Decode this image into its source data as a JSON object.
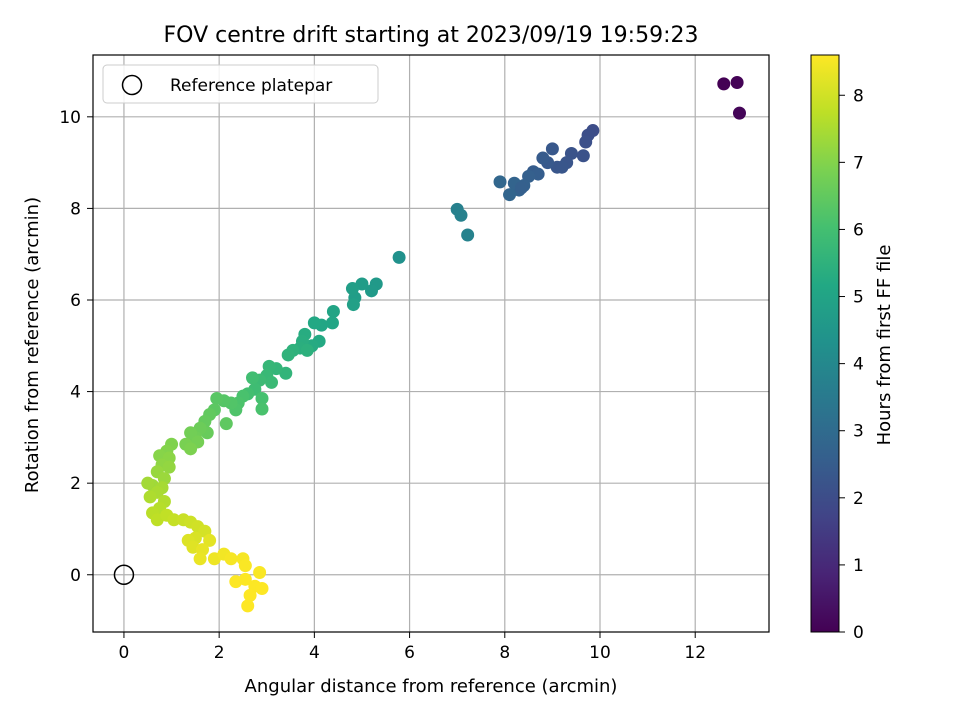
{
  "chart_data": {
    "type": "scatter",
    "title": "FOV centre drift starting at 2023/09/19 19:59:23",
    "xlabel": "Angular distance from reference (arcmin)",
    "ylabel": "Rotation from reference (arcmin)",
    "xlim": [
      -0.65,
      13.55
    ],
    "ylim": [
      -1.25,
      11.35
    ],
    "xticks": [
      0,
      2,
      4,
      6,
      8,
      10,
      12
    ],
    "yticks": [
      0,
      2,
      4,
      6,
      8,
      10
    ],
    "grid": true,
    "legend": {
      "position": "top-left",
      "entries": [
        "Reference platepar"
      ]
    },
    "reference_point": {
      "x": 0,
      "y": 0
    },
    "colorbar": {
      "label": "Hours from first FF file",
      "range": [
        0,
        8.6
      ],
      "ticks": [
        0,
        1,
        2,
        3,
        4,
        5,
        6,
        7,
        8
      ],
      "colormap": "viridis"
    },
    "points": [
      {
        "x": 12.6,
        "y": 10.72,
        "c": 0.0
      },
      {
        "x": 12.88,
        "y": 10.75,
        "c": 0.05
      },
      {
        "x": 12.93,
        "y": 10.08,
        "c": 0.1
      },
      {
        "x": 9.85,
        "y": 9.7,
        "c": 2.0
      },
      {
        "x": 9.75,
        "y": 9.6,
        "c": 2.05
      },
      {
        "x": 9.7,
        "y": 9.45,
        "c": 2.1
      },
      {
        "x": 9.65,
        "y": 9.15,
        "c": 2.15
      },
      {
        "x": 9.4,
        "y": 9.2,
        "c": 2.2
      },
      {
        "x": 9.3,
        "y": 9.0,
        "c": 2.25
      },
      {
        "x": 9.1,
        "y": 8.9,
        "c": 2.3
      },
      {
        "x": 9.0,
        "y": 9.3,
        "c": 2.35
      },
      {
        "x": 8.9,
        "y": 9.0,
        "c": 2.4
      },
      {
        "x": 8.8,
        "y": 9.1,
        "c": 2.45
      },
      {
        "x": 8.6,
        "y": 8.8,
        "c": 2.5
      },
      {
        "x": 8.7,
        "y": 8.75,
        "c": 2.55
      },
      {
        "x": 8.5,
        "y": 8.7,
        "c": 2.6
      },
      {
        "x": 8.4,
        "y": 8.5,
        "c": 2.65
      },
      {
        "x": 8.3,
        "y": 8.4,
        "c": 2.7
      },
      {
        "x": 8.2,
        "y": 8.55,
        "c": 2.75
      },
      {
        "x": 8.1,
        "y": 8.3,
        "c": 2.8
      },
      {
        "x": 7.9,
        "y": 8.58,
        "c": 2.85
      },
      {
        "x": 9.2,
        "y": 8.9,
        "c": 2.3
      },
      {
        "x": 8.35,
        "y": 8.45,
        "c": 2.6
      },
      {
        "x": 7.0,
        "y": 7.98,
        "c": 3.7
      },
      {
        "x": 7.08,
        "y": 7.85,
        "c": 3.75
      },
      {
        "x": 7.22,
        "y": 7.42,
        "c": 3.8
      },
      {
        "x": 5.78,
        "y": 6.93,
        "c": 4.3
      },
      {
        "x": 5.3,
        "y": 6.35,
        "c": 4.6
      },
      {
        "x": 5.2,
        "y": 6.2,
        "c": 4.65
      },
      {
        "x": 5.0,
        "y": 6.35,
        "c": 4.7
      },
      {
        "x": 4.85,
        "y": 6.05,
        "c": 4.75
      },
      {
        "x": 4.8,
        "y": 6.25,
        "c": 4.8
      },
      {
        "x": 4.82,
        "y": 5.9,
        "c": 4.85
      },
      {
        "x": 4.4,
        "y": 5.75,
        "c": 5.0
      },
      {
        "x": 4.38,
        "y": 5.5,
        "c": 5.05
      },
      {
        "x": 4.15,
        "y": 5.45,
        "c": 5.1
      },
      {
        "x": 4.0,
        "y": 5.5,
        "c": 5.15
      },
      {
        "x": 4.1,
        "y": 5.1,
        "c": 5.2
      },
      {
        "x": 3.95,
        "y": 5.0,
        "c": 5.25
      },
      {
        "x": 3.8,
        "y": 5.25,
        "c": 5.3
      },
      {
        "x": 3.75,
        "y": 5.1,
        "c": 5.35
      },
      {
        "x": 3.7,
        "y": 4.95,
        "c": 5.4
      },
      {
        "x": 3.85,
        "y": 4.9,
        "c": 5.45
      },
      {
        "x": 3.55,
        "y": 4.9,
        "c": 5.5
      },
      {
        "x": 3.45,
        "y": 4.8,
        "c": 5.55
      },
      {
        "x": 3.4,
        "y": 4.4,
        "c": 5.6
      },
      {
        "x": 3.2,
        "y": 4.5,
        "c": 5.65
      },
      {
        "x": 3.05,
        "y": 4.55,
        "c": 5.7
      },
      {
        "x": 3.0,
        "y": 4.35,
        "c": 5.75
      },
      {
        "x": 3.1,
        "y": 4.2,
        "c": 5.8
      },
      {
        "x": 2.85,
        "y": 4.25,
        "c": 5.85
      },
      {
        "x": 2.75,
        "y": 4.05,
        "c": 5.9
      },
      {
        "x": 2.7,
        "y": 4.3,
        "c": 5.95
      },
      {
        "x": 2.6,
        "y": 3.95,
        "c": 6.0
      },
      {
        "x": 2.9,
        "y": 3.85,
        "c": 6.05
      },
      {
        "x": 2.5,
        "y": 3.9,
        "c": 6.1
      },
      {
        "x": 2.4,
        "y": 3.75,
        "c": 6.15
      },
      {
        "x": 2.35,
        "y": 3.6,
        "c": 6.2
      },
      {
        "x": 2.25,
        "y": 3.75,
        "c": 6.25
      },
      {
        "x": 2.9,
        "y": 3.62,
        "c": 6.1
      },
      {
        "x": 2.1,
        "y": 3.8,
        "c": 6.3
      },
      {
        "x": 1.95,
        "y": 3.85,
        "c": 6.35
      },
      {
        "x": 1.9,
        "y": 3.6,
        "c": 6.4
      },
      {
        "x": 2.15,
        "y": 3.3,
        "c": 6.45
      },
      {
        "x": 1.8,
        "y": 3.5,
        "c": 6.5
      },
      {
        "x": 1.7,
        "y": 3.35,
        "c": 6.55
      },
      {
        "x": 1.75,
        "y": 3.1,
        "c": 6.6
      },
      {
        "x": 1.6,
        "y": 3.2,
        "c": 6.65
      },
      {
        "x": 1.5,
        "y": 3.0,
        "c": 6.7
      },
      {
        "x": 1.4,
        "y": 3.1,
        "c": 6.75
      },
      {
        "x": 1.55,
        "y": 2.9,
        "c": 6.8
      },
      {
        "x": 1.3,
        "y": 2.85,
        "c": 6.85
      },
      {
        "x": 1.4,
        "y": 2.75,
        "c": 6.9
      },
      {
        "x": 1.0,
        "y": 2.85,
        "c": 6.95
      },
      {
        "x": 0.9,
        "y": 2.7,
        "c": 7.0
      },
      {
        "x": 0.75,
        "y": 2.6,
        "c": 7.05
      },
      {
        "x": 0.95,
        "y": 2.55,
        "c": 7.1
      },
      {
        "x": 0.8,
        "y": 2.4,
        "c": 7.15
      },
      {
        "x": 0.95,
        "y": 2.35,
        "c": 7.2
      },
      {
        "x": 0.7,
        "y": 2.25,
        "c": 7.25
      },
      {
        "x": 0.85,
        "y": 2.1,
        "c": 7.3
      },
      {
        "x": 0.6,
        "y": 1.95,
        "c": 7.35
      },
      {
        "x": 0.5,
        "y": 2.0,
        "c": 7.4
      },
      {
        "x": 0.8,
        "y": 1.9,
        "c": 7.45
      },
      {
        "x": 0.7,
        "y": 1.8,
        "c": 7.5
      },
      {
        "x": 0.55,
        "y": 1.7,
        "c": 7.55
      },
      {
        "x": 0.85,
        "y": 1.6,
        "c": 7.6
      },
      {
        "x": 0.75,
        "y": 1.45,
        "c": 7.65
      },
      {
        "x": 0.6,
        "y": 1.35,
        "c": 7.7
      },
      {
        "x": 0.7,
        "y": 1.2,
        "c": 7.75
      },
      {
        "x": 0.9,
        "y": 1.3,
        "c": 7.8
      },
      {
        "x": 1.05,
        "y": 1.2,
        "c": 7.85
      },
      {
        "x": 1.25,
        "y": 1.2,
        "c": 7.9
      },
      {
        "x": 1.4,
        "y": 1.15,
        "c": 7.95
      },
      {
        "x": 1.55,
        "y": 1.05,
        "c": 8.0
      },
      {
        "x": 1.7,
        "y": 0.95,
        "c": 8.05
      },
      {
        "x": 1.5,
        "y": 0.8,
        "c": 8.1
      },
      {
        "x": 1.35,
        "y": 0.75,
        "c": 8.15
      },
      {
        "x": 1.45,
        "y": 0.6,
        "c": 8.2
      },
      {
        "x": 1.8,
        "y": 0.75,
        "c": 8.25
      },
      {
        "x": 1.65,
        "y": 0.55,
        "c": 8.3
      },
      {
        "x": 1.6,
        "y": 0.35,
        "c": 8.35
      },
      {
        "x": 1.9,
        "y": 0.35,
        "c": 8.4
      },
      {
        "x": 2.1,
        "y": 0.45,
        "c": 8.45
      },
      {
        "x": 2.25,
        "y": 0.35,
        "c": 8.5
      },
      {
        "x": 2.5,
        "y": 0.35,
        "c": 8.5
      },
      {
        "x": 2.55,
        "y": 0.2,
        "c": 8.55
      },
      {
        "x": 2.85,
        "y": 0.05,
        "c": 8.55
      },
      {
        "x": 2.35,
        "y": -0.15,
        "c": 8.58
      },
      {
        "x": 2.55,
        "y": -0.1,
        "c": 8.58
      },
      {
        "x": 2.75,
        "y": -0.25,
        "c": 8.58
      },
      {
        "x": 2.9,
        "y": -0.3,
        "c": 8.6
      },
      {
        "x": 2.65,
        "y": -0.45,
        "c": 8.6
      },
      {
        "x": 2.6,
        "y": -0.68,
        "c": 8.6
      }
    ]
  }
}
